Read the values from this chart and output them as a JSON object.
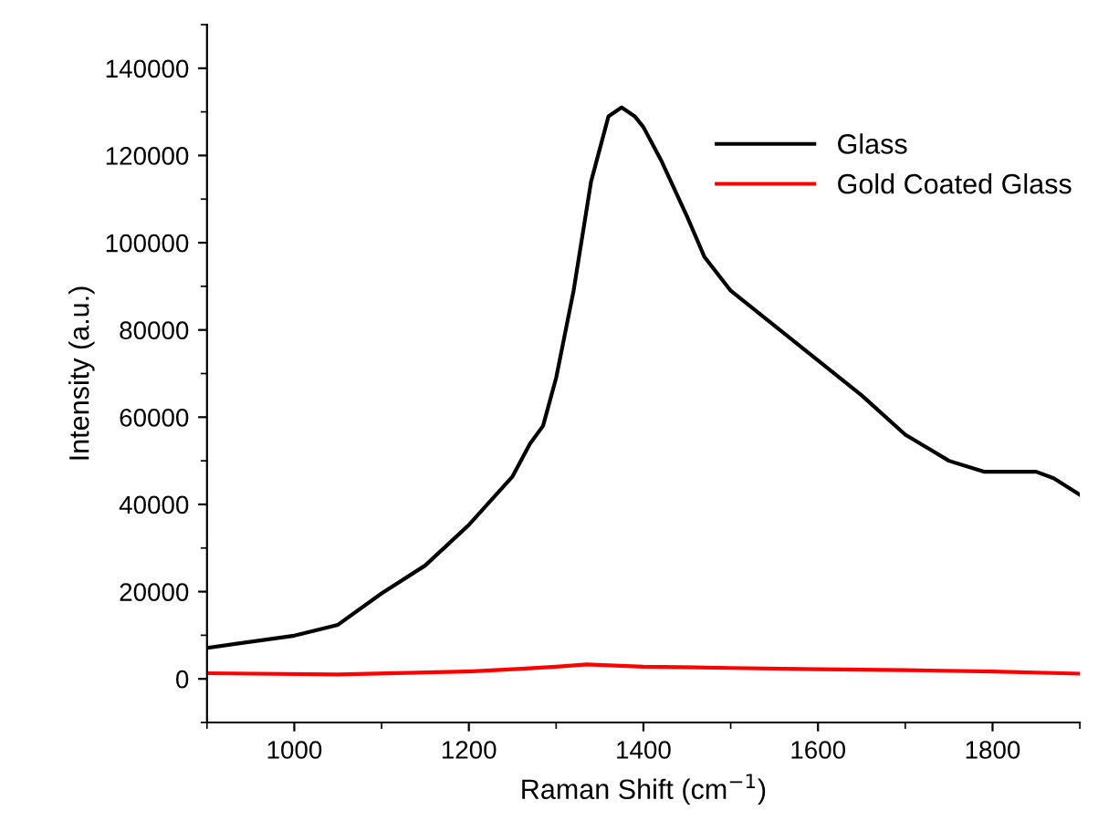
{
  "chart_data": {
    "type": "line",
    "xlabel": "Raman Shift (cm$^{−1}$)",
    "ylabel": "Intensity (a.u.)",
    "xlim": [
      900,
      1900
    ],
    "ylim": [
      -10000,
      150000
    ],
    "xticks": [
      1000,
      1200,
      1400,
      1600,
      1800
    ],
    "yticks": [
      0,
      20000,
      40000,
      60000,
      80000,
      100000,
      120000,
      140000
    ],
    "grid": false,
    "legend": "top right",
    "series": [
      {
        "name": "Glass",
        "color": "#000000",
        "x": [
          900,
          1000,
          1050,
          1100,
          1150,
          1200,
          1250,
          1270,
          1285,
          1300,
          1320,
          1340,
          1360,
          1375,
          1390,
          1400,
          1420,
          1450,
          1470,
          1500,
          1550,
          1600,
          1650,
          1700,
          1750,
          1790,
          1850,
          1870,
          1900
        ],
        "values": [
          7100,
          9900,
          12400,
          19600,
          26000,
          35300,
          46400,
          53900,
          58000,
          69000,
          89000,
          114000,
          129000,
          131000,
          129000,
          126500,
          119000,
          106000,
          96700,
          89000,
          81000,
          73000,
          65000,
          56000,
          50000,
          47500,
          47500,
          46000,
          42200
        ]
      },
      {
        "name": "Gold Coated Glass",
        "color": "#ff0000",
        "x": [
          900,
          1050,
          1200,
          1260,
          1300,
          1335,
          1400,
          1500,
          1600,
          1700,
          1800,
          1900
        ],
        "values": [
          1300,
          1000,
          1700,
          2300,
          2800,
          3300,
          2800,
          2500,
          2200,
          2000,
          1700,
          1200
        ]
      }
    ]
  }
}
